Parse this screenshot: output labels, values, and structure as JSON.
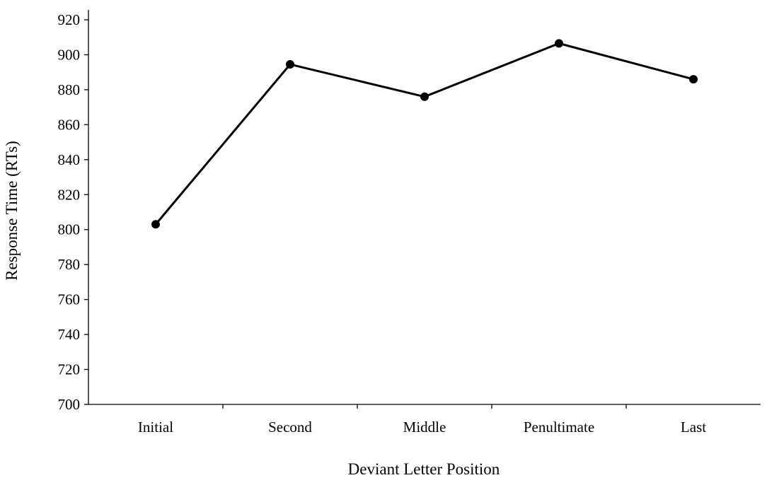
{
  "chart_data": {
    "type": "line",
    "title": "",
    "xlabel": "Deviant Letter Position",
    "ylabel": "Response Time (RTs)",
    "categories": [
      "Initial",
      "Second",
      "Middle",
      "Penultimate",
      "Last"
    ],
    "series": [
      {
        "values": [
          803,
          894.5,
          876,
          906.5,
          886
        ]
      }
    ],
    "ylim": [
      700,
      920
    ],
    "yticks": [
      700,
      720,
      740,
      760,
      780,
      800,
      820,
      840,
      860,
      880,
      900,
      920
    ],
    "grid": false,
    "legend": "none",
    "colors": {
      "line": "#000000",
      "marker": "#000000"
    }
  }
}
